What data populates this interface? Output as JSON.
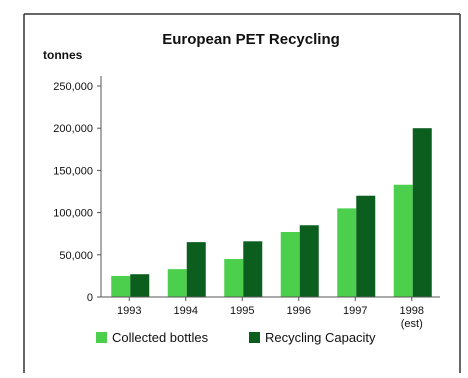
{
  "chart_data": {
    "type": "bar",
    "title": "European PET Recycling",
    "ylabel": "tonnes",
    "xlabel": "",
    "categories": [
      "1993",
      "1994",
      "1995",
      "1996",
      "1997",
      "1998"
    ],
    "category_sublabels": [
      "",
      "",
      "",
      "",
      "",
      "(est)"
    ],
    "yticks": [
      "0",
      "50,000",
      "100,000",
      "150,000",
      "200,000",
      "250,000"
    ],
    "ytick_values": [
      0,
      50000,
      100000,
      150000,
      200000,
      250000
    ],
    "ylim": [
      0,
      250000
    ],
    "grid": false,
    "legend_position": "bottom",
    "series": [
      {
        "name": "Collected bottles",
        "color": "#4ccf4c",
        "values": [
          25000,
          33000,
          45000,
          77000,
          105000,
          133000
        ]
      },
      {
        "name": "Recycling Capacity",
        "color": "#0b5e1d",
        "values": [
          27000,
          65000,
          66000,
          85000,
          120000,
          200000
        ]
      }
    ]
  }
}
